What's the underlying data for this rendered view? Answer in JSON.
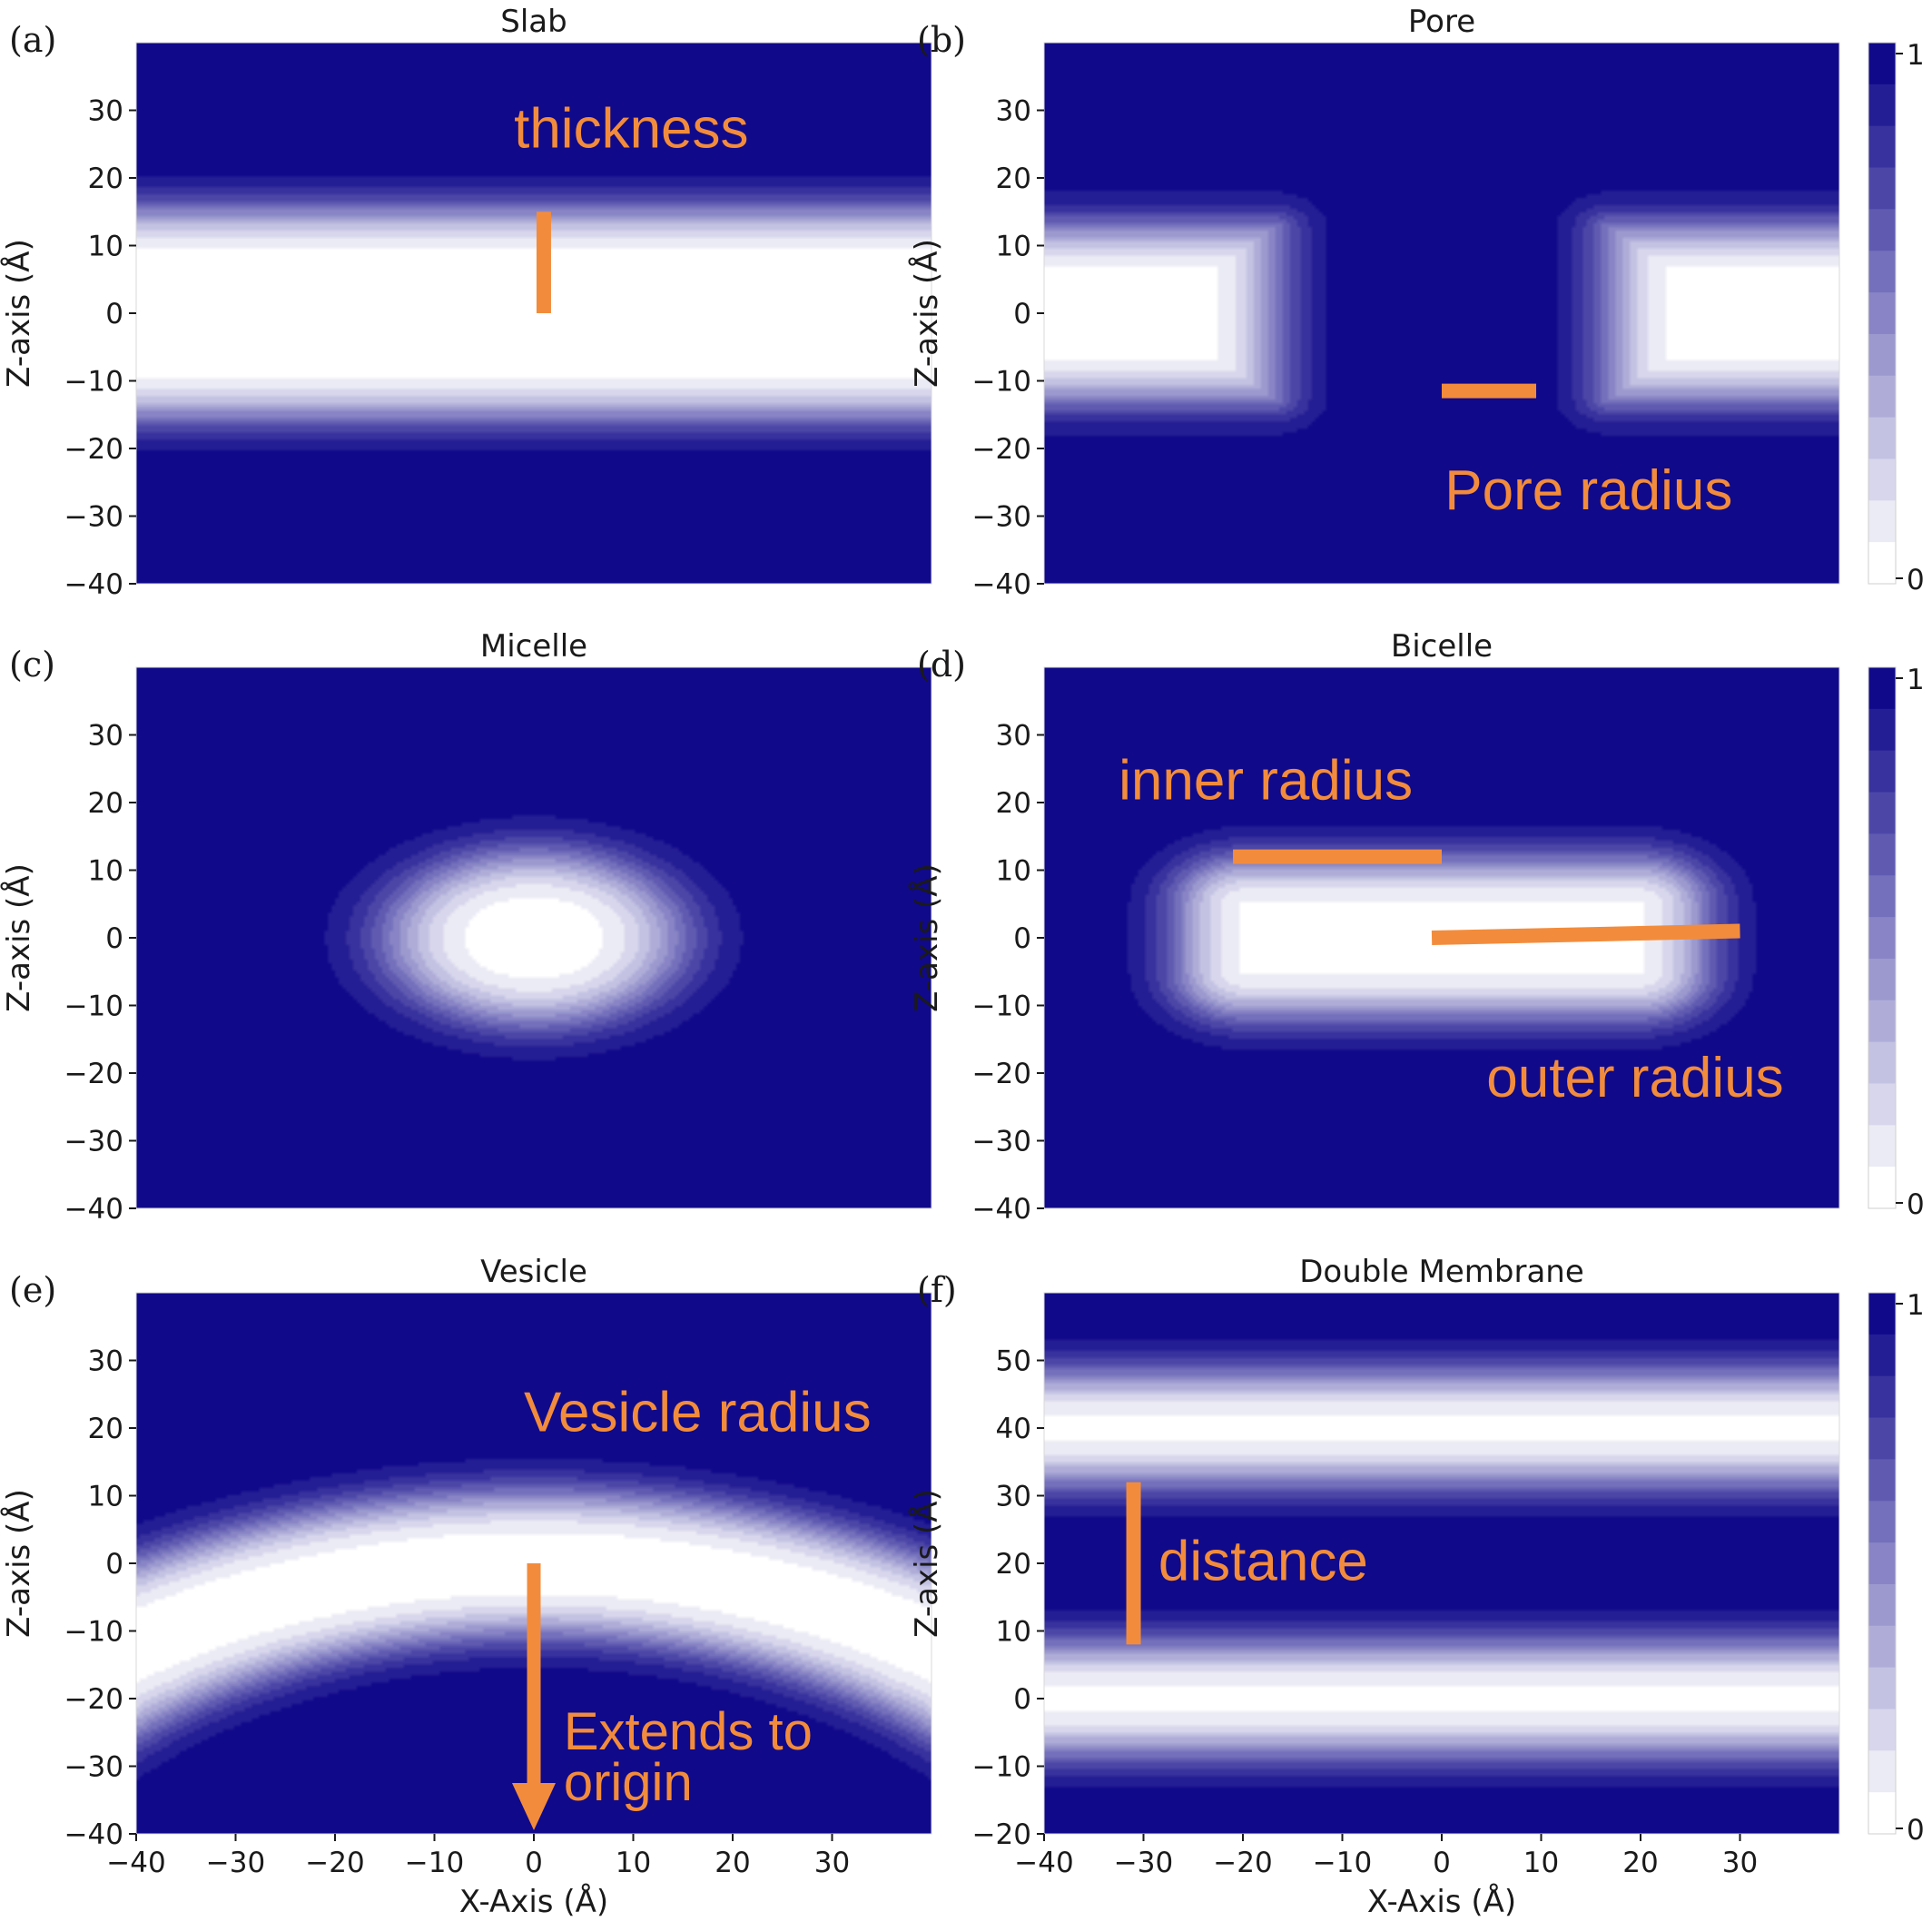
{
  "colors": {
    "high": "#10098a",
    "low": "#ffffff",
    "annotation": "#f28c3c",
    "text": "#1a1a1a"
  },
  "colorbar": {
    "tick_top": "1",
    "tick_bottom": "0",
    "levels": 13
  },
  "shared": {
    "xlabel": "X-Axis (Å)",
    "ylabel": "Z-axis (Å)"
  },
  "chart_data": [
    {
      "id": "a",
      "panel_label": "(a)",
      "title": "Slab",
      "type": "heatmap",
      "shape": "slab",
      "xlim": [
        -40,
        40
      ],
      "ylim": [
        -40,
        40
      ],
      "params": {
        "thickness": 15
      },
      "yticks": [
        "30",
        "20",
        "10",
        "0",
        "−10",
        "−20",
        "−30",
        "−40"
      ],
      "xticks": [],
      "show_xlabel": false,
      "show_colorbar": false,
      "annotations": [
        {
          "kind": "line",
          "from": [
            1,
            0
          ],
          "to": [
            1,
            15
          ]
        },
        {
          "kind": "text",
          "text": "thickness",
          "at": [
            -2,
            24.5
          ],
          "size": 62
        }
      ]
    },
    {
      "id": "b",
      "panel_label": "(b)",
      "title": "Pore",
      "type": "heatmap",
      "shape": "pore",
      "xlim": [
        -40,
        40
      ],
      "ylim": [
        -40,
        40
      ],
      "params": {
        "pore_radius": 10,
        "thickness": 12.5
      },
      "yticks": [
        "30",
        "20",
        "10",
        "0",
        "−10",
        "−20",
        "−30",
        "−40"
      ],
      "xticks": [],
      "show_xlabel": false,
      "show_colorbar": true,
      "annotations": [
        {
          "kind": "line",
          "from": [
            0,
            -11.5
          ],
          "to": [
            9.5,
            -11.5
          ]
        },
        {
          "kind": "text",
          "text": "Pore radius",
          "at": [
            0.3,
            -29
          ],
          "size": 62
        }
      ]
    },
    {
      "id": "c",
      "panel_label": "(c)",
      "title": "Micelle",
      "type": "heatmap",
      "shape": "micelle",
      "xlim": [
        -40,
        40
      ],
      "ylim": [
        -40,
        40
      ],
      "params": {
        "a": 14,
        "c": 12
      },
      "yticks": [
        "30",
        "20",
        "10",
        "0",
        "−10",
        "−20",
        "−30",
        "−40"
      ],
      "xticks": [],
      "show_xlabel": false,
      "show_colorbar": false,
      "annotations": []
    },
    {
      "id": "d",
      "panel_label": "(d)",
      "title": "Bicelle",
      "type": "heatmap",
      "shape": "bicelle",
      "xlim": [
        -40,
        40
      ],
      "ylim": [
        -40,
        40
      ],
      "params": {
        "outer_radius": 30,
        "thickness": 12
      },
      "yticks": [
        "30",
        "20",
        "10",
        "0",
        "−10",
        "−20",
        "−30",
        "−40"
      ],
      "xticks": [],
      "show_xlabel": false,
      "show_colorbar": true,
      "annotations": [
        {
          "kind": "line",
          "from": [
            -21,
            12
          ],
          "to": [
            0,
            12
          ]
        },
        {
          "kind": "line",
          "from": [
            -1,
            0
          ],
          "to": [
            30,
            1
          ]
        },
        {
          "kind": "text",
          "text": "inner radius",
          "at": [
            -32.5,
            20.5
          ],
          "size": 62
        },
        {
          "kind": "text",
          "text": "outer radius",
          "at": [
            4.5,
            -23.5
          ],
          "size": 62
        }
      ]
    },
    {
      "id": "e",
      "panel_label": "(e)",
      "title": "Vesicle",
      "type": "heatmap",
      "shape": "vesicle",
      "xlim": [
        -40,
        40
      ],
      "ylim": [
        -40,
        40
      ],
      "params": {
        "center_z": -72,
        "outer_radius": 84,
        "inner_radius": 60
      },
      "yticks": [
        "30",
        "20",
        "10",
        "0",
        "−10",
        "−20",
        "−30",
        "−40"
      ],
      "xticks": [
        "−40",
        "−30",
        "−20",
        "−10",
        "0",
        "10",
        "20",
        "30"
      ],
      "show_xlabel": true,
      "show_colorbar": false,
      "annotations": [
        {
          "kind": "arrow",
          "from": [
            0,
            0
          ],
          "to": [
            0,
            -40
          ]
        },
        {
          "kind": "text",
          "text": "Vesicle radius",
          "at": [
            -1,
            19.5
          ],
          "size": 62
        },
        {
          "kind": "text",
          "text": "Extends to",
          "at": [
            3,
            -27.5
          ],
          "size": 58
        },
        {
          "kind": "text",
          "text": "origin",
          "at": [
            3,
            -35
          ],
          "size": 58
        }
      ]
    },
    {
      "id": "f",
      "panel_label": "(f)",
      "title": "Double Membrane",
      "type": "heatmap",
      "shape": "double",
      "xlim": [
        -40,
        40
      ],
      "ylim": [
        -20,
        60
      ],
      "params": {
        "centers": [
          0,
          40
        ],
        "half_thickness": 7.5
      },
      "yticks": [
        "50",
        "40",
        "30",
        "20",
        "10",
        "0",
        "−10",
        "−20"
      ],
      "xticks": [
        "−40",
        "−30",
        "−20",
        "−10",
        "0",
        "10",
        "20",
        "30"
      ],
      "show_xlabel": true,
      "show_colorbar": true,
      "annotations": [
        {
          "kind": "line",
          "from": [
            -31,
            8
          ],
          "to": [
            -31,
            32
          ]
        },
        {
          "kind": "text",
          "text": "distance",
          "at": [
            -28.5,
            17.5
          ],
          "size": 62
        }
      ]
    }
  ]
}
